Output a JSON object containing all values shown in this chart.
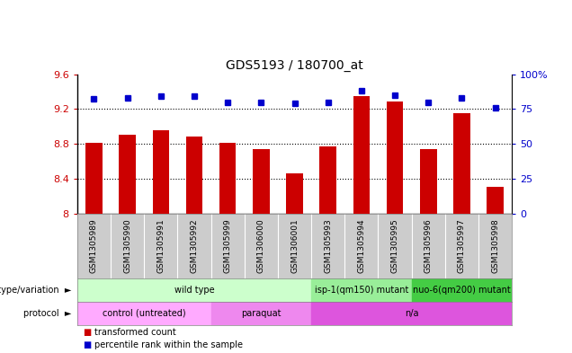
{
  "title": "GDS5193 / 180700_at",
  "samples": [
    "GSM1305989",
    "GSM1305990",
    "GSM1305991",
    "GSM1305992",
    "GSM1305999",
    "GSM1306000",
    "GSM1306001",
    "GSM1305993",
    "GSM1305994",
    "GSM1305995",
    "GSM1305996",
    "GSM1305997",
    "GSM1305998"
  ],
  "transformed_count": [
    8.81,
    8.9,
    8.96,
    8.88,
    8.81,
    8.74,
    8.46,
    8.77,
    9.35,
    9.29,
    8.74,
    9.15,
    8.31
  ],
  "percentile_rank": [
    82,
    83,
    84,
    84,
    80,
    80,
    79,
    80,
    88,
    85,
    80,
    83,
    76
  ],
  "ylim_left": [
    8.0,
    9.6
  ],
  "ylim_right": [
    0,
    100
  ],
  "yticks_left": [
    8.0,
    8.4,
    8.8,
    9.2,
    9.6
  ],
  "yticks_left_labels": [
    "8",
    "8.4",
    "8.8",
    "9.2",
    "9.6"
  ],
  "yticks_right": [
    0,
    25,
    50,
    75,
    100
  ],
  "yticks_right_labels": [
    "0",
    "25",
    "50",
    "75",
    "100%"
  ],
  "bar_color": "#cc0000",
  "dot_color": "#0000cc",
  "bar_width": 0.5,
  "genotype_groups": [
    {
      "label": "wild type",
      "start": 0,
      "end": 7,
      "color": "#ccffcc"
    },
    {
      "label": "isp-1(qm150) mutant",
      "start": 7,
      "end": 10,
      "color": "#99ee99"
    },
    {
      "label": "nuo-6(qm200) mutant",
      "start": 10,
      "end": 13,
      "color": "#44cc44"
    }
  ],
  "protocol_groups": [
    {
      "label": "control (untreated)",
      "start": 0,
      "end": 4,
      "color": "#ffaaff"
    },
    {
      "label": "paraquat",
      "start": 4,
      "end": 7,
      "color": "#ee88ee"
    },
    {
      "label": "n/a",
      "start": 7,
      "end": 13,
      "color": "#dd55dd"
    }
  ],
  "background_color": "#ffffff",
  "tick_label_color_left": "#cc0000",
  "tick_label_color_right": "#0000cc",
  "sample_bg_color": "#cccccc",
  "label_left_geno": "genotype/variation",
  "label_left_prot": "protocol",
  "legend_bar": "transformed count",
  "legend_dot": "percentile rank within the sample"
}
